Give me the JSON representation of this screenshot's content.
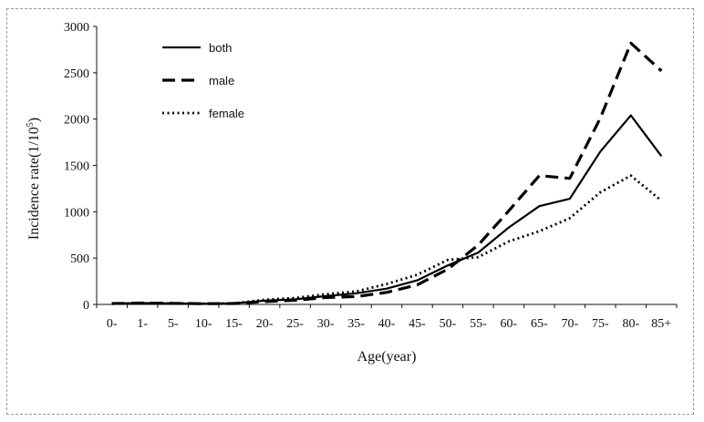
{
  "chart_data": {
    "type": "line",
    "title": "",
    "xlabel": "Age(year)",
    "ylabel_main": "Incidence rate(1/10",
    "ylabel_sup": "5",
    "ylabel_close": ")",
    "categories": [
      "0-",
      "1-",
      "5-",
      "10-",
      "15-",
      "20-",
      "25-",
      "30-",
      "35-",
      "40-",
      "45-",
      "50-",
      "55-",
      "60-",
      "65-",
      "70-",
      "75-",
      "80-",
      "85+"
    ],
    "ylim": [
      0,
      3000
    ],
    "yticks": [
      "0",
      "500",
      "1000",
      "1500",
      "2000",
      "2500",
      "3000"
    ],
    "grid": false,
    "legend_position": "top-left",
    "series": [
      {
        "name": "both",
        "style": "solid",
        "values": [
          10,
          15,
          12,
          8,
          12,
          40,
          55,
          90,
          120,
          170,
          260,
          420,
          560,
          830,
          1060,
          1140,
          1650,
          2040,
          1600
        ]
      },
      {
        "name": "male",
        "style": "dashed",
        "values": [
          10,
          15,
          12,
          8,
          10,
          30,
          45,
          75,
          85,
          130,
          210,
          380,
          640,
          1010,
          1390,
          1360,
          2010,
          2820,
          2520
        ]
      },
      {
        "name": "female",
        "style": "dotted",
        "values": [
          8,
          12,
          10,
          8,
          12,
          50,
          70,
          110,
          140,
          220,
          320,
          480,
          510,
          680,
          790,
          930,
          1210,
          1390,
          1120
        ]
      }
    ]
  }
}
